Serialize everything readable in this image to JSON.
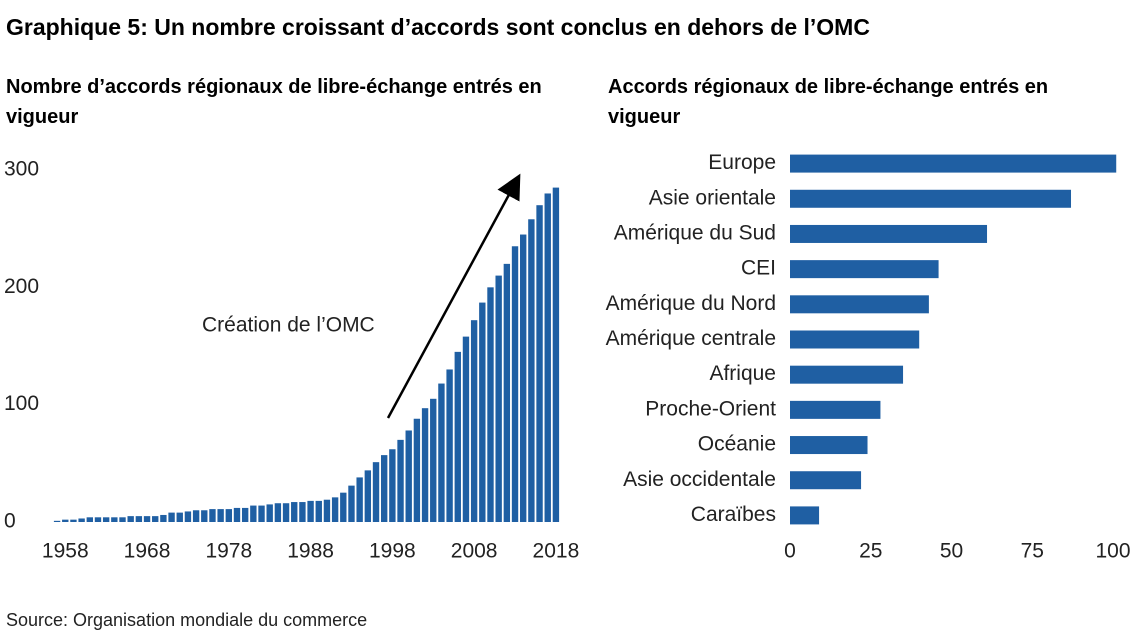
{
  "title": "Graphique 5: Un nombre croissant d’accords sont conclus en dehors de l’OMC",
  "source": "Source: Organisation mondiale du commerce",
  "chart_data": [
    {
      "type": "bar",
      "title": "Nombre d’accords régionaux de libre-échange entrés en vigueur",
      "annotation": "Création de l’OMC",
      "color": "#1f5fa3",
      "x": [
        1957,
        1958,
        1959,
        1960,
        1961,
        1962,
        1963,
        1964,
        1965,
        1966,
        1967,
        1968,
        1969,
        1970,
        1971,
        1972,
        1973,
        1974,
        1975,
        1976,
        1977,
        1978,
        1979,
        1980,
        1981,
        1982,
        1983,
        1984,
        1985,
        1986,
        1987,
        1988,
        1989,
        1990,
        1991,
        1992,
        1993,
        1994,
        1995,
        1996,
        1997,
        1998,
        1999,
        2000,
        2001,
        2002,
        2003,
        2004,
        2005,
        2006,
        2007,
        2008,
        2009,
        2010,
        2011,
        2012,
        2013,
        2014,
        2015,
        2016,
        2017,
        2018
      ],
      "values": [
        1,
        2,
        2,
        3,
        4,
        4,
        4,
        4,
        4,
        5,
        5,
        5,
        5,
        6,
        8,
        8,
        9,
        10,
        10,
        11,
        11,
        11,
        12,
        12,
        14,
        14,
        15,
        16,
        16,
        17,
        17,
        18,
        18,
        19,
        21,
        25,
        31,
        38,
        44,
        51,
        57,
        62,
        70,
        78,
        88,
        97,
        105,
        118,
        130,
        145,
        158,
        172,
        187,
        200,
        210,
        220,
        235,
        245,
        258,
        270,
        280,
        285
      ],
      "xlim": [
        1956.5,
        2018.5
      ],
      "xticks": [
        1958,
        1968,
        1978,
        1988,
        1998,
        2008,
        2018
      ],
      "ylim": [
        0,
        300
      ],
      "yticks": [
        0,
        100,
        200,
        300
      ]
    },
    {
      "type": "hbar",
      "title": "Accords régionaux de libre-échange entrés en vigueur",
      "color": "#1f5fa3",
      "categories": [
        "Europe",
        "Asie orientale",
        "Amérique du Sud",
        "CEI",
        "Amérique du Nord",
        "Amérique centrale",
        "Afrique",
        "Proche-Orient",
        "Océanie",
        "Asie occidentale",
        "Caraïbes"
      ],
      "values": [
        101,
        87,
        61,
        46,
        43,
        40,
        35,
        28,
        24,
        22,
        9
      ],
      "xlim": [
        0,
        100
      ],
      "xticks": [
        0,
        25,
        50,
        75,
        100
      ]
    }
  ]
}
